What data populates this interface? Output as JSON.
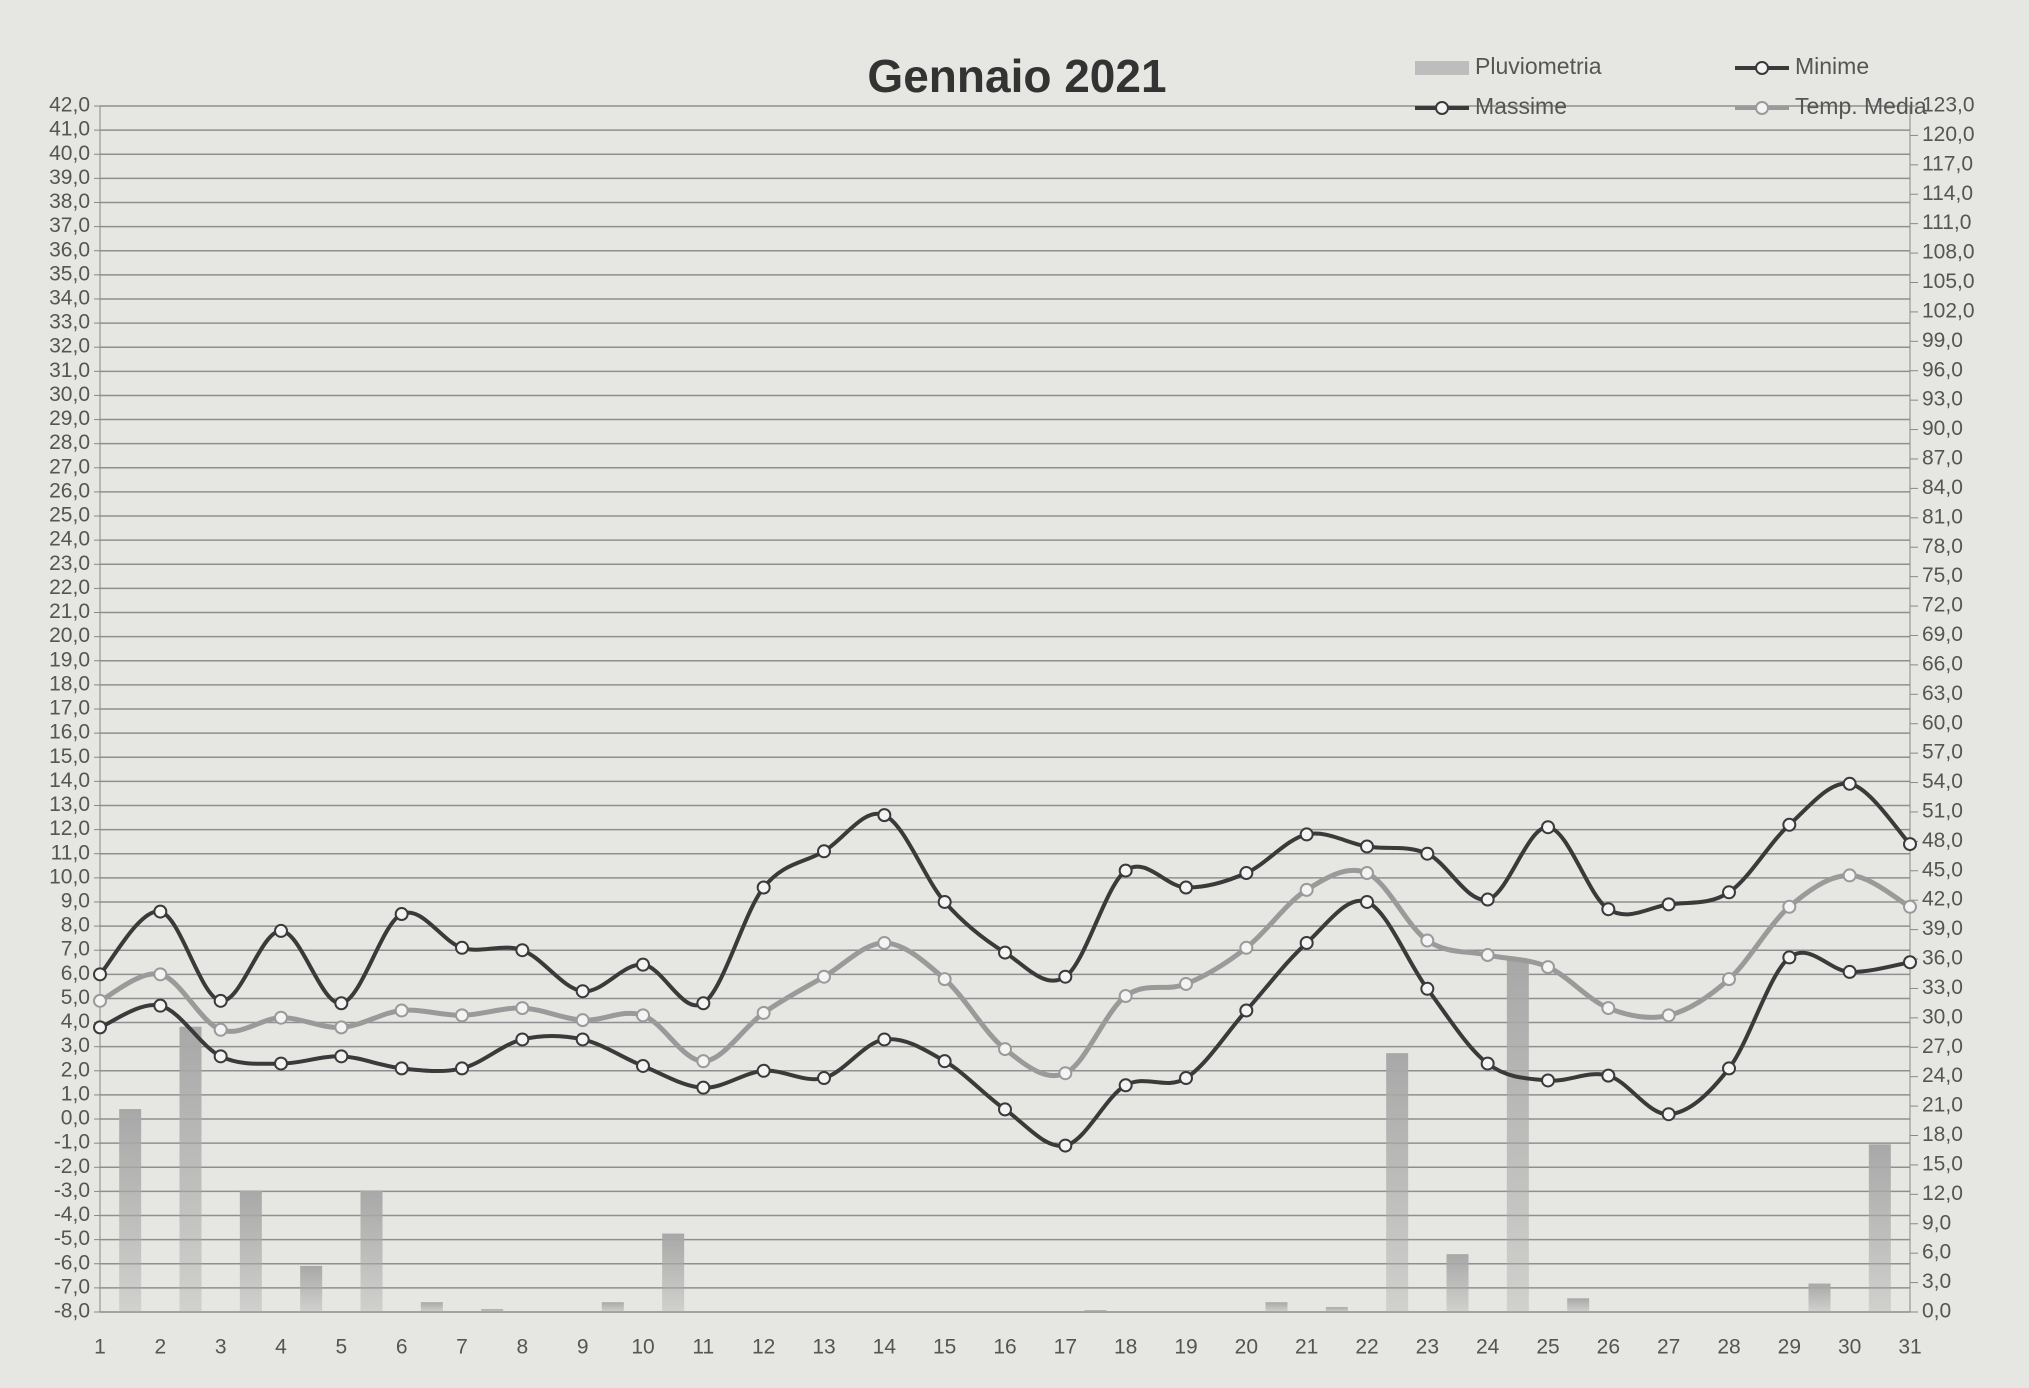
{
  "chart_data": {
    "type": "combo",
    "title": "Gennaio 2021",
    "legend": "top-right",
    "grid": true,
    "categories": [
      "1",
      "2",
      "3",
      "4",
      "5",
      "6",
      "7",
      "8",
      "9",
      "10",
      "11",
      "12",
      "13",
      "14",
      "15",
      "16",
      "17",
      "18",
      "19",
      "20",
      "21",
      "22",
      "23",
      "24",
      "25",
      "26",
      "27",
      "28",
      "29",
      "30",
      "31"
    ],
    "ylim": [
      -8,
      42
    ],
    "yticks": [
      {
        "value": 42,
        "label": "42,0"
      },
      {
        "value": 41,
        "label": "41,0"
      },
      {
        "value": 40,
        "label": "40,0"
      },
      {
        "value": 39,
        "label": "39,0"
      },
      {
        "value": 38,
        "label": "38,0"
      },
      {
        "value": 37,
        "label": "37,0"
      },
      {
        "value": 36,
        "label": "36,0"
      },
      {
        "value": 35,
        "label": "35,0"
      },
      {
        "value": 34,
        "label": "34,0"
      },
      {
        "value": 33,
        "label": "33,0"
      },
      {
        "value": 32,
        "label": "32,0"
      },
      {
        "value": 31,
        "label": "31,0"
      },
      {
        "value": 30,
        "label": "30,0"
      },
      {
        "value": 29,
        "label": "29,0"
      },
      {
        "value": 28,
        "label": "28,0"
      },
      {
        "value": 27,
        "label": "27,0"
      },
      {
        "value": 26,
        "label": "26,0"
      },
      {
        "value": 25,
        "label": "25,0"
      },
      {
        "value": 24,
        "label": "24,0"
      },
      {
        "value": 23,
        "label": "23,0"
      },
      {
        "value": 22,
        "label": "22,0"
      },
      {
        "value": 21,
        "label": "21,0"
      },
      {
        "value": 20,
        "label": "20,0"
      },
      {
        "value": 19,
        "label": "19,0"
      },
      {
        "value": 18,
        "label": "18,0"
      },
      {
        "value": 17,
        "label": "17,0"
      },
      {
        "value": 16,
        "label": "16,0"
      },
      {
        "value": 15,
        "label": "15,0"
      },
      {
        "value": 14,
        "label": "14,0"
      },
      {
        "value": 13,
        "label": "13,0"
      },
      {
        "value": 12,
        "label": "12,0"
      },
      {
        "value": 11,
        "label": "11,0"
      },
      {
        "value": 10,
        "label": "10,0"
      },
      {
        "value": 9,
        "label": "9,0"
      },
      {
        "value": 8,
        "label": "8,0"
      },
      {
        "value": 7,
        "label": "7,0"
      },
      {
        "value": 6,
        "label": "6,0"
      },
      {
        "value": 5,
        "label": "5,0"
      },
      {
        "value": 4,
        "label": "4,0"
      },
      {
        "value": 3,
        "label": "3,0"
      },
      {
        "value": 2,
        "label": "2,0"
      },
      {
        "value": 1,
        "label": "1,0"
      },
      {
        "value": 0,
        "label": "0,0"
      },
      {
        "value": -1,
        "label": "-1,0"
      },
      {
        "value": -2,
        "label": "-2,0"
      },
      {
        "value": -3,
        "label": "-3,0"
      },
      {
        "value": -4,
        "label": "-4,0"
      },
      {
        "value": -5,
        "label": "-5,0"
      },
      {
        "value": -6,
        "label": "-6,0"
      },
      {
        "value": -7,
        "label": "-7,0"
      },
      {
        "value": -8,
        "label": "-8,0"
      }
    ],
    "y2lim": [
      0,
      123
    ],
    "y2ticks": [
      {
        "value": 123,
        "label": "123,0"
      },
      {
        "value": 120,
        "label": "120,0"
      },
      {
        "value": 117,
        "label": "117,0"
      },
      {
        "value": 114,
        "label": "114,0"
      },
      {
        "value": 111,
        "label": "111,0"
      },
      {
        "value": 108,
        "label": "108,0"
      },
      {
        "value": 105,
        "label": "105,0"
      },
      {
        "value": 102,
        "label": "102,0"
      },
      {
        "value": 99,
        "label": "99,0"
      },
      {
        "value": 96,
        "label": "96,0"
      },
      {
        "value": 93,
        "label": "93,0"
      },
      {
        "value": 90,
        "label": "90,0"
      },
      {
        "value": 87,
        "label": "87,0"
      },
      {
        "value": 84,
        "label": "84,0"
      },
      {
        "value": 81,
        "label": "81,0"
      },
      {
        "value": 78,
        "label": "78,0"
      },
      {
        "value": 75,
        "label": "75,0"
      },
      {
        "value": 72,
        "label": "72,0"
      },
      {
        "value": 69,
        "label": "69,0"
      },
      {
        "value": 66,
        "label": "66,0"
      },
      {
        "value": 63,
        "label": "63,0"
      },
      {
        "value": 60,
        "label": "60,0"
      },
      {
        "value": 57,
        "label": "57,0"
      },
      {
        "value": 54,
        "label": "54,0"
      },
      {
        "value": 51,
        "label": "51,0"
      },
      {
        "value": 48,
        "label": "48,0"
      },
      {
        "value": 45,
        "label": "45,0"
      },
      {
        "value": 42,
        "label": "42,0"
      },
      {
        "value": 39,
        "label": "39,0"
      },
      {
        "value": 36,
        "label": "36,0"
      },
      {
        "value": 33,
        "label": "33,0"
      },
      {
        "value": 30,
        "label": "30,0"
      },
      {
        "value": 27,
        "label": "27,0"
      },
      {
        "value": 24,
        "label": "24,0"
      },
      {
        "value": 21,
        "label": "21,0"
      },
      {
        "value": 18,
        "label": "18,0"
      },
      {
        "value": 15,
        "label": "15,0"
      },
      {
        "value": 12,
        "label": "12,0"
      },
      {
        "value": 9,
        "label": "9,0"
      },
      {
        "value": 6,
        "label": "6,0"
      },
      {
        "value": 3,
        "label": "3,0"
      },
      {
        "value": 0,
        "label": "0,0"
      }
    ],
    "series": [
      {
        "name": "Pluviometria",
        "type": "bar",
        "axis": "y2",
        "color": "#bdbdbd",
        "values": [
          20.7,
          29.1,
          12.4,
          4.7,
          12.4,
          1.0,
          0.3,
          0,
          1.0,
          8.0,
          0,
          0,
          0,
          0,
          0,
          0,
          0.2,
          0,
          0.1,
          1.0,
          0.5,
          26.4,
          5.9,
          36.0,
          1.4,
          0,
          0,
          0,
          2.9,
          17.1,
          0
        ]
      },
      {
        "name": "Massime",
        "type": "line",
        "color": "#3a3a3a",
        "values": [
          6.0,
          8.6,
          4.9,
          7.8,
          4.8,
          8.5,
          7.1,
          7.0,
          5.3,
          6.4,
          4.8,
          9.6,
          11.1,
          12.6,
          9.0,
          6.9,
          5.9,
          10.3,
          9.6,
          10.2,
          11.8,
          11.3,
          11.0,
          9.1,
          12.1,
          8.7,
          8.9,
          9.4,
          12.2,
          13.9,
          11.4
        ]
      },
      {
        "name": "Minime",
        "type": "line",
        "color": "#3a3a3a",
        "values": [
          3.8,
          4.7,
          2.6,
          2.3,
          2.6,
          2.1,
          2.1,
          3.3,
          3.3,
          2.2,
          1.3,
          2.0,
          1.7,
          3.3,
          2.4,
          0.4,
          -1.1,
          1.4,
          1.7,
          4.5,
          7.3,
          9.0,
          5.4,
          2.3,
          1.6,
          1.8,
          0.2,
          2.1,
          6.7,
          6.1,
          6.5
        ]
      },
      {
        "name": "Temp. Media",
        "type": "line",
        "color": "#9a9a9a",
        "values": [
          4.9,
          6.0,
          3.7,
          4.2,
          3.8,
          4.5,
          4.3,
          4.6,
          4.1,
          4.3,
          2.4,
          4.4,
          5.9,
          7.3,
          5.8,
          2.9,
          1.9,
          5.1,
          5.6,
          7.1,
          9.5,
          10.2,
          7.4,
          6.8,
          6.3,
          4.6,
          4.3,
          5.8,
          8.8,
          10.1,
          8.8
        ]
      }
    ]
  }
}
